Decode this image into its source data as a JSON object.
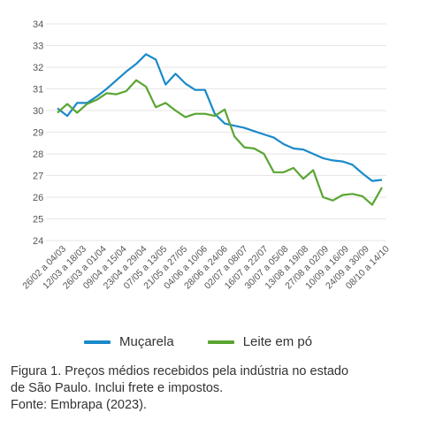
{
  "chart_data": {
    "type": "line",
    "title": "",
    "xlabel": "",
    "ylabel": "",
    "ylim": [
      24,
      34
    ],
    "yticks": [
      24,
      25,
      26,
      27,
      28,
      29,
      30,
      31,
      32,
      33,
      34
    ],
    "grid": true,
    "legend_position": "bottom",
    "x_tick_labels": [
      "26/02 a 04/03",
      "12/03 a 18/03",
      "26/03 a 01/04",
      "09/04 a 15/04",
      "23/04 a 29/04",
      "07/05 a 13/05",
      "21/05 a 27/05",
      "04/06 a 10/06",
      "28/06 a 24/06",
      "02/07 a 08/07",
      "16/07 a 22/07",
      "30/07 a 05/08",
      "13/08 a 19/08",
      "27/08 a 02/09",
      "10/09 a 16/09",
      "24/09 a 30/09",
      "08/10 a 14/10"
    ],
    "series": [
      {
        "name": "Muçarela",
        "color": "#1a8ac9",
        "values": [
          30.1,
          29.75,
          30.35,
          30.35,
          30.65,
          31.0,
          31.4,
          31.8,
          32.15,
          32.6,
          32.35,
          31.2,
          31.7,
          31.25,
          30.95,
          30.95,
          29.85,
          29.4,
          29.3,
          29.2,
          29.05,
          28.9,
          28.75,
          28.45,
          28.25,
          28.2,
          28.0,
          27.8,
          27.7,
          27.65,
          27.5,
          27.1,
          26.75,
          26.8
        ]
      },
      {
        "name": "Leite em pó",
        "color": "#5aa532",
        "values": [
          29.9,
          30.3,
          29.9,
          30.3,
          30.5,
          30.8,
          30.75,
          30.9,
          31.4,
          31.1,
          30.15,
          30.35,
          30.0,
          29.7,
          29.85,
          29.85,
          29.75,
          30.05,
          28.8,
          28.3,
          28.25,
          28.0,
          27.15,
          27.15,
          27.35,
          26.85,
          27.25,
          26.0,
          25.85,
          26.1,
          26.15,
          26.05,
          25.65,
          26.45
        ]
      }
    ]
  },
  "legend": {
    "items": [
      {
        "label": "Muçarela",
        "color": "#1a8ac9"
      },
      {
        "label": "Leite em pó",
        "color": "#5aa532"
      }
    ]
  },
  "caption": {
    "line1": "Figura 1. Preços médios recebidos pela indústria no estado",
    "line2": "de São Paulo. Inclui frete e impostos.",
    "line3": "Fonte: Embrapa (2023)."
  }
}
